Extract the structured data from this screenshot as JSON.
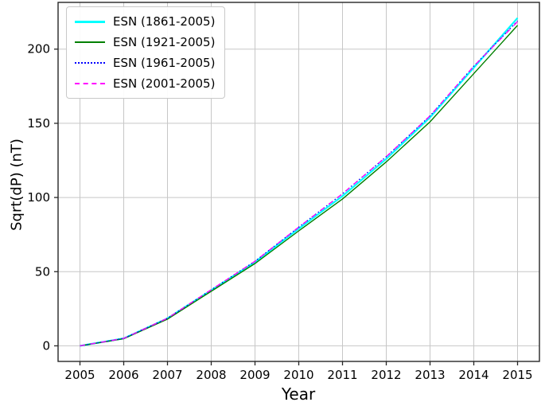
{
  "chart_data": {
    "type": "line",
    "title": "",
    "xlabel": "Year",
    "ylabel": "Sqrt(dP) (nT)",
    "grid": true,
    "legend_position": "upper left",
    "xlim": [
      2004.5,
      2015.5
    ],
    "ylim": [
      -10.5,
      231.5
    ],
    "xticks": [
      2005,
      2006,
      2007,
      2008,
      2009,
      2010,
      2011,
      2012,
      2013,
      2014,
      2015
    ],
    "yticks": [
      0,
      50,
      100,
      150,
      200
    ],
    "x": [
      2005,
      2006,
      2007,
      2008,
      2009,
      2010,
      2011,
      2012,
      2013,
      2014,
      2015
    ],
    "series": [
      {
        "name": "ESN (1861-2005)",
        "color": "#00ffff",
        "style": "solid",
        "width": 2.2,
        "values": [
          0,
          5,
          18.5,
          37.5,
          56.5,
          79,
          101,
          126,
          154,
          187.5,
          221
        ]
      },
      {
        "name": "ESN (1921-2005)",
        "color": "#008000",
        "style": "solid",
        "width": 1.4,
        "values": [
          0,
          4.8,
          18,
          36.8,
          55.5,
          77.5,
          99,
          124,
          151,
          183.5,
          216
        ]
      },
      {
        "name": "ESN (1961-2005)",
        "color": "#0000ff",
        "style": "dotted",
        "width": 1.4,
        "values": [
          0,
          5,
          18.6,
          37.8,
          57,
          80,
          102.5,
          127.5,
          155,
          188.5,
          219
        ]
      },
      {
        "name": "ESN (2001-2005)",
        "color": "#ff00ff",
        "style": "dashed",
        "width": 1.4,
        "values": [
          0,
          5,
          18.6,
          37.8,
          57,
          80,
          102.5,
          127.5,
          155,
          188.5,
          218.5
        ]
      }
    ],
    "colors": {
      "grid": "#c7c7c7",
      "spine": "#262626",
      "text": "#000000"
    }
  }
}
